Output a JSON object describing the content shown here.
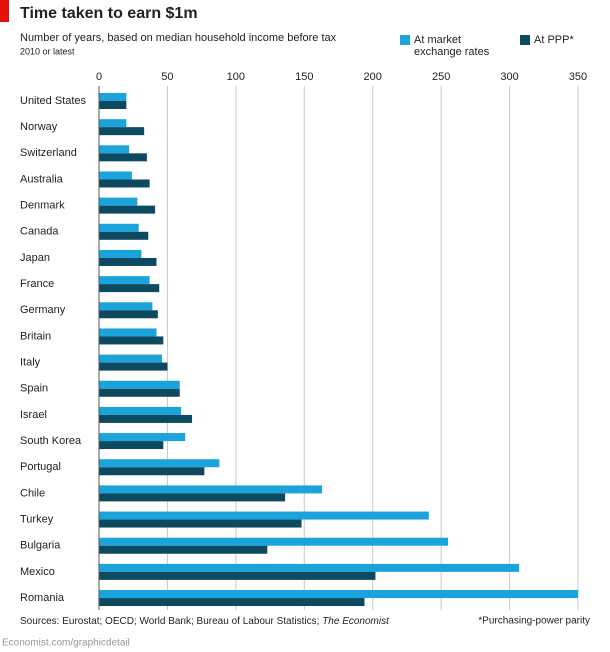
{
  "chart_data": {
    "type": "bar",
    "orientation": "horizontal",
    "title": "Time taken to earn $1m",
    "subtitle": "Number of years, based on median household income before tax",
    "note": "2010 or latest",
    "categories": [
      "United States",
      "Norway",
      "Switzerland",
      "Australia",
      "Denmark",
      "Canada",
      "Japan",
      "France",
      "Germany",
      "Britain",
      "Italy",
      "Spain",
      "Israel",
      "South Korea",
      "Portugal",
      "Chile",
      "Turkey",
      "Bulgaria",
      "Mexico",
      "Romania"
    ],
    "series": [
      {
        "name": "At market exchange rates",
        "color": "#1ba3dc",
        "values": [
          20,
          20,
          22,
          24,
          28,
          29,
          31,
          37,
          39,
          42,
          46,
          59,
          60,
          63,
          88,
          163,
          241,
          255,
          307,
          350
        ]
      },
      {
        "name": "At PPP*",
        "color": "#0d4a60",
        "values": [
          20,
          33,
          35,
          37,
          41,
          36,
          42,
          44,
          43,
          47,
          50,
          59,
          68,
          47,
          77,
          136,
          148,
          123,
          202,
          194
        ]
      }
    ],
    "xlim": [
      0,
      350
    ],
    "xticks": [
      0,
      50,
      100,
      150,
      200,
      250,
      300,
      350
    ],
    "grid": true,
    "sources": "Sources: Eurostat; OECD; World Bank; Bureau of Labour Statistics;",
    "sources_em": "The Economist",
    "footnote": "*Purchasing-power parity",
    "credit": "Economist.com/graphicdetail"
  }
}
